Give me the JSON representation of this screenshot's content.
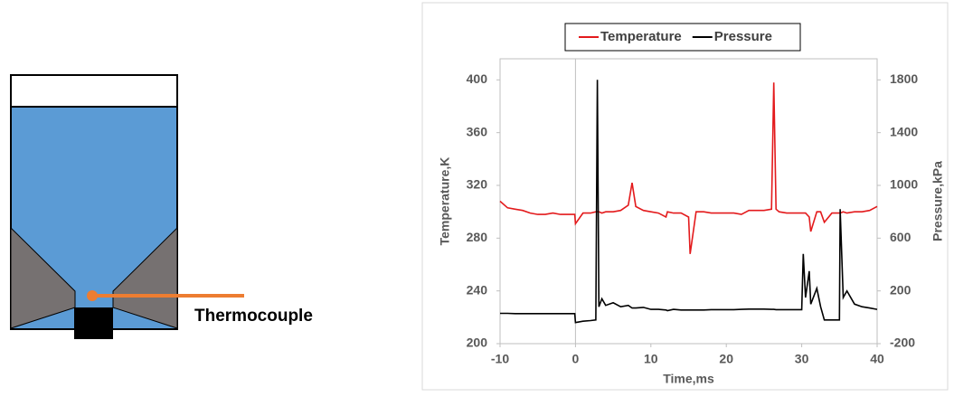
{
  "diagram": {
    "label": "Thermocouple"
  },
  "chart_data": {
    "type": "line",
    "xlabel": "Time,ms",
    "ylabel": "Temperature,K",
    "y2label": "Pressure,kPa",
    "legend": "top",
    "grid": false,
    "xlim": [
      -10,
      40
    ],
    "xticks": [
      -10,
      0,
      10,
      20,
      30,
      40
    ],
    "ylim": [
      200,
      416
    ],
    "yticks": [
      200,
      240,
      280,
      320,
      360,
      400
    ],
    "y2lim": [
      -200,
      1960
    ],
    "y2ticks": [
      -200,
      200,
      600,
      1000,
      1400,
      1800
    ],
    "x": [
      -10,
      -9,
      -8,
      -7,
      -6,
      -5,
      -4,
      -3,
      -2,
      -1,
      -0.1,
      0,
      1,
      2,
      2.7,
      2.9,
      3.1,
      3.5,
      4,
      5,
      6,
      7,
      7.5,
      8,
      9,
      10,
      11,
      12,
      12.2,
      13,
      14,
      15,
      15.2,
      16,
      17,
      18,
      19,
      20,
      21,
      22,
      23,
      24,
      25,
      26,
      26.3,
      26.6,
      27,
      28,
      29,
      30,
      30.2,
      30.5,
      31,
      31.2,
      32,
      32.5,
      33,
      34,
      35,
      35.1,
      35.5,
      36,
      37,
      38,
      39,
      40
    ],
    "series": [
      {
        "name": "Temperature",
        "color": "#e31a1c",
        "values": [
          308,
          303,
          302,
          301,
          299,
          298,
          298,
          299,
          298,
          298,
          298,
          291,
          299,
          299,
          300,
          300,
          300,
          299,
          300,
          300,
          301,
          305,
          322,
          304,
          301,
          300,
          299,
          296,
          300,
          299,
          299,
          296,
          268,
          300,
          300,
          299,
          299,
          299,
          299,
          298,
          301,
          301,
          301,
          302,
          398,
          302,
          300,
          299,
          299,
          299,
          299,
          299,
          296,
          285,
          300,
          300,
          292,
          299,
          299,
          299,
          300,
          299,
          300,
          300,
          301,
          304
        ]
      },
      {
        "name": "Pressure",
        "color": "#000000",
        "axis": "y2",
        "values": [
          30,
          30,
          28,
          28,
          28,
          28,
          28,
          28,
          28,
          28,
          28,
          -40,
          -30,
          -25,
          -20,
          1800,
          80,
          140,
          90,
          110,
          80,
          90,
          70,
          70,
          75,
          60,
          60,
          55,
          50,
          60,
          55,
          55,
          55,
          55,
          55,
          58,
          58,
          58,
          58,
          60,
          62,
          62,
          62,
          60,
          60,
          58,
          58,
          58,
          58,
          58,
          480,
          150,
          350,
          100,
          220,
          80,
          -20,
          -20,
          -20,
          820,
          150,
          200,
          100,
          80,
          70,
          60
        ]
      }
    ]
  }
}
